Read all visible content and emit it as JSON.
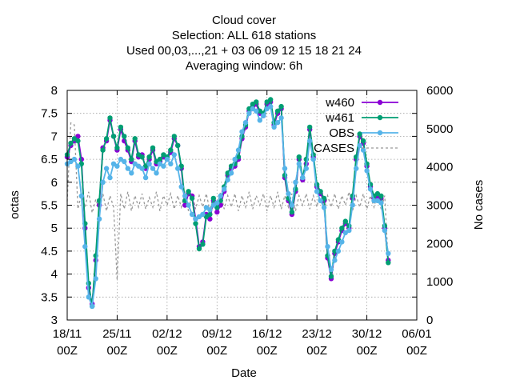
{
  "chart_data": {
    "type": "line",
    "title_lines": [
      "Cloud cover",
      "Selection: ALL    618 stations",
      "Used  00,03,...,21  + 03 06 09 12 15 18 21 24",
      "Averaging window:  6h"
    ],
    "xlabel": "Date",
    "ylabel": "octas",
    "y2label": "No cases",
    "xlim": [
      "2025-11-18 00Z",
      "2026-01-06 00Z"
    ],
    "ylim": [
      3,
      8
    ],
    "y2lim": [
      0,
      6000
    ],
    "x_ticks": [
      {
        "day": 0,
        "line1": "18/11",
        "line2": "00Z"
      },
      {
        "day": 7,
        "line1": "25/11",
        "line2": "00Z"
      },
      {
        "day": 14,
        "line1": "02/12",
        "line2": "00Z"
      },
      {
        "day": 21,
        "line1": "09/12",
        "line2": "00Z"
      },
      {
        "day": 28,
        "line1": "16/12",
        "line2": "00Z"
      },
      {
        "day": 35,
        "line1": "23/12",
        "line2": "00Z"
      },
      {
        "day": 42,
        "line1": "30/12",
        "line2": "00Z"
      },
      {
        "day": 49,
        "line1": "06/01",
        "line2": "00Z"
      }
    ],
    "y_ticks": [
      "3",
      "3.5",
      "4",
      "4.5",
      "5",
      "5.5",
      "6",
      "6.5",
      "7",
      "7.5",
      "8"
    ],
    "y2_ticks": [
      "0",
      "1000",
      "2000",
      "3000",
      "4000",
      "5000",
      "6000"
    ],
    "grid": true,
    "legend_position": "top-right",
    "series": [
      {
        "name": "w460",
        "axis": "y",
        "color": "#8a00d4",
        "x": [
          0,
          0.5,
          1,
          1.5,
          2,
          2.5,
          3,
          3.5,
          4,
          4.5,
          5,
          5.5,
          6,
          6.5,
          7,
          7.5,
          8,
          8.5,
          9,
          9.5,
          10,
          10.5,
          11,
          11.5,
          12,
          12.5,
          13,
          13.5,
          14,
          14.5,
          15,
          15.5,
          16,
          16.5,
          17,
          17.5,
          18,
          18.5,
          19,
          19.5,
          20,
          20.5,
          21,
          21.5,
          22,
          22.5,
          23,
          23.5,
          24,
          24.5,
          25,
          25.5,
          26,
          26.5,
          27,
          27.5,
          28,
          28.5,
          29,
          29.5,
          30,
          30.5,
          31,
          31.5,
          32,
          32.5,
          33,
          33.5,
          34,
          34.5,
          35,
          35.5,
          36,
          36.5,
          37,
          37.5,
          38,
          38.5,
          39,
          39.5,
          40,
          40.5,
          41,
          41.5,
          42,
          42.5,
          43,
          43.5,
          44,
          44.5,
          45
        ],
        "values": [
          6.55,
          6.8,
          6.9,
          7.0,
          6.5,
          5.0,
          3.7,
          3.35,
          4.3,
          5.5,
          6.75,
          6.9,
          7.35,
          7.0,
          6.7,
          7.15,
          6.9,
          6.7,
          6.45,
          6.9,
          6.55,
          6.6,
          6.3,
          6.5,
          6.7,
          6.4,
          6.45,
          6.55,
          6.5,
          6.65,
          6.95,
          6.8,
          6.3,
          5.5,
          5.75,
          5.7,
          5.2,
          4.6,
          4.7,
          5.3,
          5.2,
          5.6,
          5.35,
          5.5,
          5.8,
          6.15,
          6.3,
          6.35,
          6.5,
          6.95,
          7.2,
          7.55,
          7.65,
          7.7,
          7.5,
          7.45,
          7.7,
          7.75,
          7.25,
          7.5,
          7.6,
          6.1,
          5.6,
          5.3,
          5.8,
          6.5,
          6.05,
          6.4,
          7.15,
          6.55,
          5.9,
          5.75,
          5.6,
          4.35,
          3.9,
          4.45,
          4.7,
          4.95,
          5.1,
          5.0,
          5.65,
          6.5,
          7.0,
          6.85,
          6.35,
          5.9,
          5.65,
          5.7,
          5.65,
          5.0,
          4.3
        ]
      },
      {
        "name": "w461",
        "axis": "y",
        "color": "#009e73",
        "x": [
          0,
          0.5,
          1,
          1.5,
          2,
          2.5,
          3,
          3.5,
          4,
          4.5,
          5,
          5.5,
          6,
          6.5,
          7,
          7.5,
          8,
          8.5,
          9,
          9.5,
          10,
          10.5,
          11,
          11.5,
          12,
          12.5,
          13,
          13.5,
          14,
          14.5,
          15,
          15.5,
          16,
          16.5,
          17,
          17.5,
          18,
          18.5,
          19,
          19.5,
          20,
          20.5,
          21,
          21.5,
          22,
          22.5,
          23,
          23.5,
          24,
          24.5,
          25,
          25.5,
          26,
          26.5,
          27,
          27.5,
          28,
          28.5,
          29,
          29.5,
          30,
          30.5,
          31,
          31.5,
          32,
          32.5,
          33,
          33.5,
          34,
          34.5,
          35,
          35.5,
          36,
          36.5,
          37,
          37.5,
          38,
          38.5,
          39,
          39.5,
          40,
          40.5,
          41,
          41.5,
          42,
          42.5,
          43,
          43.5,
          44,
          44.5,
          45
        ],
        "values": [
          6.6,
          6.85,
          6.95,
          6.9,
          6.4,
          5.1,
          3.8,
          3.3,
          4.4,
          5.6,
          6.7,
          6.95,
          7.4,
          7.0,
          6.75,
          7.2,
          7.0,
          6.75,
          6.5,
          6.95,
          6.6,
          6.55,
          6.35,
          6.55,
          6.75,
          6.45,
          6.5,
          6.6,
          6.55,
          6.7,
          7.0,
          6.8,
          6.35,
          5.6,
          5.8,
          5.65,
          5.1,
          4.55,
          4.65,
          5.25,
          5.3,
          5.65,
          5.45,
          5.6,
          5.9,
          6.2,
          6.35,
          6.4,
          6.55,
          7.0,
          7.25,
          7.6,
          7.7,
          7.75,
          7.55,
          7.5,
          7.75,
          7.8,
          7.3,
          7.55,
          7.65,
          6.15,
          5.65,
          5.35,
          5.85,
          6.55,
          6.1,
          6.5,
          7.2,
          6.6,
          5.95,
          5.8,
          5.65,
          4.4,
          3.95,
          4.5,
          4.75,
          5.0,
          5.15,
          5.05,
          5.7,
          6.55,
          7.05,
          6.9,
          6.4,
          5.95,
          5.7,
          5.75,
          5.7,
          5.05,
          4.25
        ]
      },
      {
        "name": "OBS",
        "axis": "y",
        "color": "#56b4e9",
        "x": [
          0,
          0.5,
          1,
          1.5,
          2,
          2.5,
          3,
          3.5,
          4,
          4.5,
          5,
          5.5,
          6,
          6.5,
          7,
          7.5,
          8,
          8.5,
          9,
          9.5,
          10,
          10.5,
          11,
          11.5,
          12,
          12.5,
          13,
          13.5,
          14,
          14.5,
          15,
          15.5,
          16,
          16.5,
          17,
          17.5,
          18,
          18.5,
          19,
          19.5,
          20,
          20.5,
          21,
          21.5,
          22,
          22.5,
          23,
          23.5,
          24,
          24.5,
          25,
          25.5,
          26,
          26.5,
          27,
          27.5,
          28,
          28.5,
          29,
          29.5,
          30,
          30.5,
          31,
          31.5,
          32,
          32.5,
          33,
          33.5,
          34,
          34.5,
          35,
          35.5,
          36,
          36.5,
          37,
          37.5,
          38,
          38.5,
          39,
          39.5,
          40,
          40.5,
          41,
          41.5,
          42,
          42.5,
          43,
          43.5,
          44,
          44.5,
          45
        ],
        "values": [
          6.4,
          6.45,
          6.5,
          6.35,
          5.7,
          4.6,
          3.5,
          3.3,
          3.9,
          5.2,
          6.0,
          6.3,
          6.1,
          6.4,
          6.35,
          6.5,
          6.45,
          6.3,
          6.2,
          6.4,
          6.35,
          6.3,
          6.1,
          6.4,
          6.3,
          6.2,
          6.4,
          6.35,
          6.5,
          6.4,
          6.6,
          6.3,
          5.9,
          5.7,
          5.5,
          5.3,
          5.2,
          5.25,
          5.3,
          5.45,
          5.4,
          5.5,
          5.55,
          5.7,
          5.85,
          6.05,
          6.2,
          6.5,
          6.7,
          7.1,
          7.3,
          7.5,
          7.6,
          7.55,
          7.35,
          7.45,
          7.6,
          7.65,
          7.2,
          7.3,
          7.4,
          6.3,
          5.75,
          5.5,
          6.0,
          6.4,
          6.1,
          6.3,
          6.9,
          6.5,
          5.8,
          5.6,
          5.45,
          4.6,
          4.1,
          4.3,
          4.5,
          4.7,
          4.9,
          4.95,
          5.5,
          6.3,
          6.8,
          6.7,
          6.25,
          5.85,
          5.6,
          5.6,
          5.55,
          4.95,
          4.45
        ]
      },
      {
        "name": "CASES",
        "axis": "y2",
        "color": "#999999",
        "x": [
          0,
          0.5,
          1,
          1.5,
          2,
          2.5,
          3,
          3.5,
          4,
          4.5,
          5,
          5.5,
          6,
          6.5,
          7,
          7.5,
          8,
          8.5,
          9,
          9.5,
          10,
          10.5,
          11,
          11.5,
          12,
          12.5,
          13,
          13.5,
          14,
          14.5,
          15,
          15.5,
          16,
          16.5,
          17,
          17.5,
          18,
          18.5,
          19,
          19.5,
          20,
          20.5,
          21,
          21.5,
          22,
          22.5,
          23,
          23.5,
          24,
          24.5,
          25,
          25.5,
          26,
          26.5,
          27,
          27.5,
          28,
          28.5,
          29,
          29.5,
          30,
          30.5,
          31,
          31.5,
          32,
          32.5,
          33,
          33.5,
          34,
          34.5,
          35,
          35.5,
          36,
          36.5,
          37,
          37.5,
          38,
          38.5,
          39,
          39.5,
          40,
          40.5,
          41,
          41.5,
          42,
          42.5,
          43,
          43.5,
          44,
          44.5,
          45
        ],
        "values": [
          3100,
          5150,
          5100,
          2900,
          3300,
          2950,
          3350,
          2800,
          3150,
          2900,
          3300,
          2850,
          3250,
          2950,
          1050,
          3300,
          2900,
          3350,
          2850,
          3250,
          2950,
          3300,
          2900,
          3200,
          2950,
          3350,
          2850,
          3250,
          3000,
          3300,
          2900,
          3250,
          2950,
          3350,
          2850,
          3300,
          2900,
          3250,
          2950,
          3300,
          2850,
          3250,
          3000,
          3350,
          2900,
          3250,
          2950,
          3300,
          2850,
          3250,
          2950,
          3350,
          2900,
          3250,
          3000,
          3300,
          2850,
          3250,
          2950,
          3350,
          2900,
          3250,
          2950,
          3300,
          2850,
          3250,
          3000,
          3300,
          2900,
          3250,
          2950,
          3350,
          2850,
          3250,
          2950,
          3300,
          2900,
          3250,
          3000,
          3350,
          2850,
          3250,
          2950,
          3300,
          2900,
          3250,
          2950,
          3300,
          2900,
          3250,
          1500
        ]
      }
    ]
  }
}
